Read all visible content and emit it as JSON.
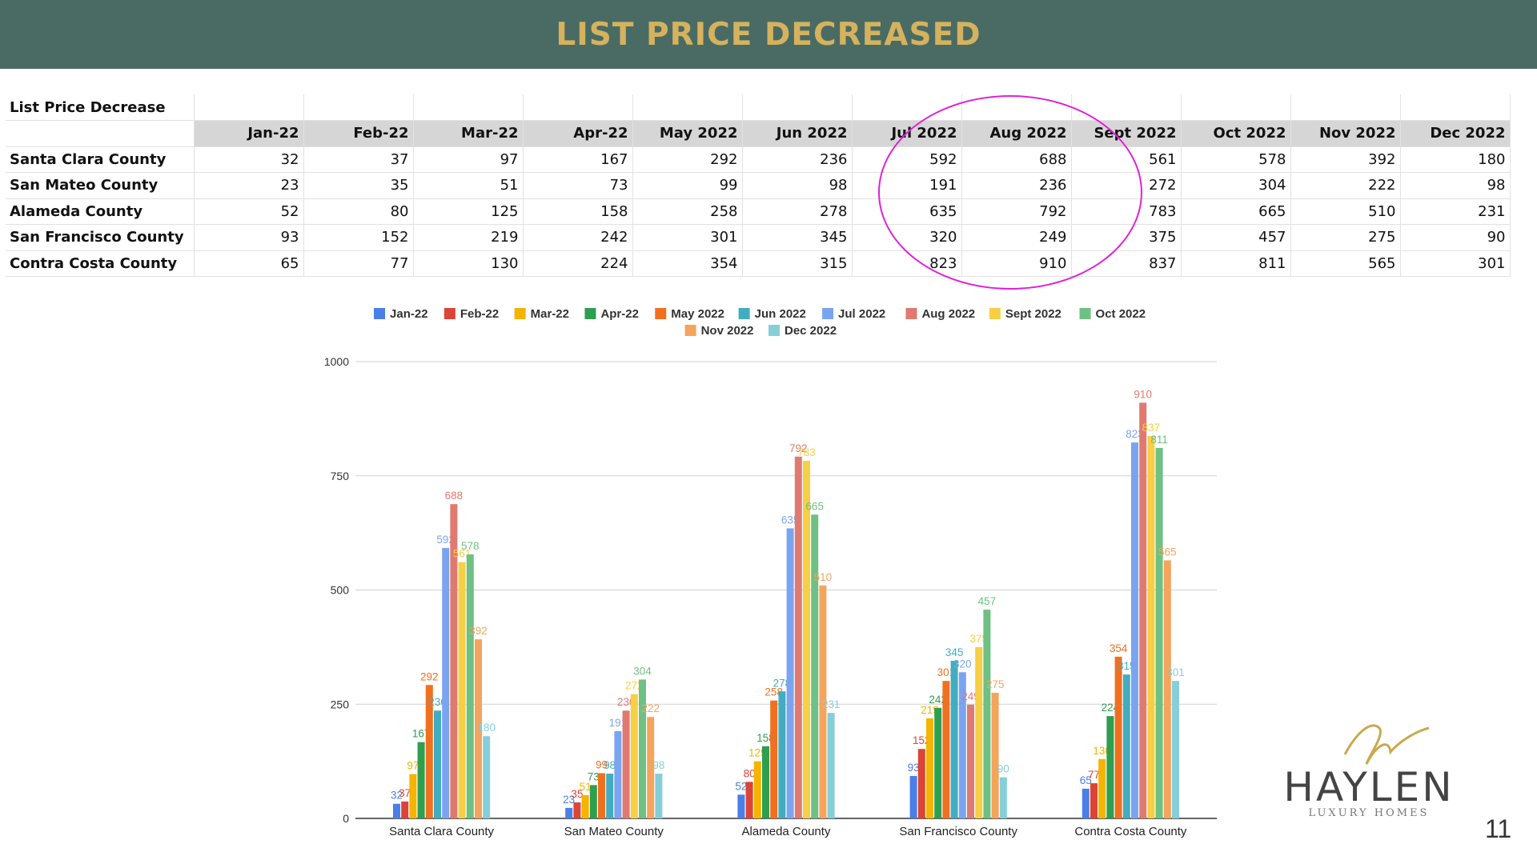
{
  "page_title": "LIST PRICE DECREASED",
  "page_number": "11",
  "logo": {
    "name": "HAYLEN",
    "tagline": "LUXURY HOMES"
  },
  "table": {
    "title": "List Price Decrease",
    "columns": [
      "Jan-22",
      "Feb-22",
      "Mar-22",
      "Apr-22",
      "May 2022",
      "Jun 2022",
      "Jul 2022",
      "Aug 2022",
      "Sept 2022",
      "Oct 2022",
      "Nov 2022",
      "Dec 2022"
    ],
    "rows": [
      {
        "county": "Santa Clara County",
        "values": [
          "32",
          "37",
          "97",
          "167",
          "292",
          "236",
          "592",
          "688",
          "561",
          "578",
          "392",
          "180"
        ]
      },
      {
        "county": "San Mateo County",
        "values": [
          "23",
          "35",
          "51",
          "73",
          "99",
          "98",
          "191",
          "236",
          "272",
          "304",
          "222",
          "98"
        ]
      },
      {
        "county": "Alameda County",
        "values": [
          "52",
          "80",
          "125",
          "158",
          "258",
          "278",
          "635",
          "792",
          "783",
          "665",
          "510",
          "231"
        ]
      },
      {
        "county": "San Francisco County",
        "values": [
          "93",
          "152",
          "219",
          "242",
          "301",
          "345",
          "320",
          "249",
          "375",
          "457",
          "275",
          "90"
        ]
      },
      {
        "county": "Contra Costa County",
        "values": [
          "65",
          "77",
          "130",
          "224",
          "354",
          "315",
          "823",
          "910",
          "837",
          "811",
          "565",
          "301"
        ]
      }
    ]
  },
  "chart_data": {
    "type": "bar",
    "categories": [
      "Santa Clara County",
      "San Mateo County",
      "Alameda County",
      "San Francisco County",
      "Contra Costa County"
    ],
    "series": [
      {
        "name": "Jan-22",
        "color": "#4a7fe8",
        "values": [
          32,
          23,
          52,
          93,
          65
        ]
      },
      {
        "name": "Feb-22",
        "color": "#db4437",
        "values": [
          37,
          35,
          80,
          152,
          77
        ]
      },
      {
        "name": "Mar-22",
        "color": "#f4b400",
        "values": [
          97,
          51,
          125,
          219,
          130
        ]
      },
      {
        "name": "Apr-22",
        "color": "#2e9e4f",
        "values": [
          167,
          73,
          158,
          242,
          224
        ]
      },
      {
        "name": "May 2022",
        "color": "#f0701f",
        "values": [
          292,
          99,
          258,
          301,
          354
        ]
      },
      {
        "name": "Jun 2022",
        "color": "#42adc0",
        "values": [
          236,
          98,
          278,
          345,
          315
        ]
      },
      {
        "name": "Jul 2022",
        "color": "#7ba4f0",
        "values": [
          592,
          191,
          635,
          320,
          823
        ]
      },
      {
        "name": "Aug 2022",
        "color": "#e07a70",
        "values": [
          688,
          236,
          792,
          249,
          910
        ]
      },
      {
        "name": "Sept 2022",
        "color": "#f6cf45",
        "values": [
          561,
          272,
          783,
          375,
          837
        ]
      },
      {
        "name": "Oct 2022",
        "color": "#6fc083",
        "values": [
          578,
          304,
          665,
          457,
          811
        ]
      },
      {
        "name": "Nov 2022",
        "color": "#f5a45c",
        "values": [
          392,
          222,
          510,
          275,
          565
        ]
      },
      {
        "name": "Dec 2022",
        "color": "#85cfd9",
        "values": [
          180,
          98,
          231,
          90,
          301
        ]
      }
    ],
    "yticks": [
      "0",
      "250",
      "500",
      "750",
      "1000"
    ],
    "ylim": [
      0,
      1000
    ],
    "legend_position": "top",
    "grid": true
  }
}
